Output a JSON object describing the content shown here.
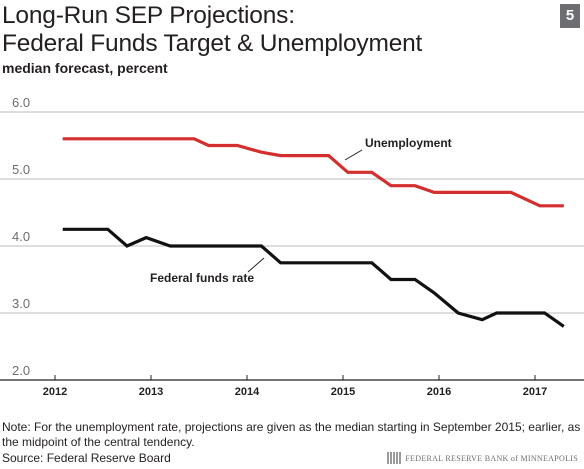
{
  "slide_number": "5",
  "chart_data": {
    "type": "line",
    "title": "Long-Run SEP Projections: Federal Funds Target & Unemployment",
    "title_lines": [
      "Long-Run SEP Projections:",
      "Federal Funds Target & Unemployment"
    ],
    "subtitle": "median forecast, percent",
    "xlabel": "",
    "ylabel": "",
    "xlim": [
      2012,
      2017.4
    ],
    "ylim": [
      2.0,
      6.0
    ],
    "x_ticks": [
      2012,
      2013,
      2014,
      2015,
      2016,
      2017
    ],
    "x_tick_labels": [
      "2012",
      "2013",
      "2014",
      "2015",
      "2016",
      "2017"
    ],
    "y_ticks": [
      2.0,
      3.0,
      4.0,
      5.0,
      6.0
    ],
    "y_tick_labels": [
      "2.0",
      "3.0",
      "4.0",
      "5.0",
      "6.0"
    ],
    "grid": true,
    "series": [
      {
        "name": "Unemployment",
        "color": "#d32f2f",
        "x": [
          2012.08,
          2012.5,
          2013.0,
          2013.25,
          2013.45,
          2013.6,
          2013.9,
          2014.15,
          2014.35,
          2014.6,
          2014.85,
          2015.05,
          2015.3,
          2015.5,
          2015.75,
          2015.95,
          2016.2,
          2016.5,
          2016.75,
          2017.05,
          2017.3
        ],
        "values": [
          5.6,
          5.6,
          5.6,
          5.6,
          5.6,
          5.5,
          5.5,
          5.4,
          5.35,
          5.35,
          5.35,
          5.1,
          5.1,
          4.9,
          4.9,
          4.8,
          4.8,
          4.8,
          4.8,
          4.6,
          4.6
        ]
      },
      {
        "name": "Federal funds rate",
        "color": "#111111",
        "x": [
          2012.08,
          2012.25,
          2012.55,
          2012.75,
          2012.95,
          2013.2,
          2013.5,
          2013.75,
          2014.0,
          2014.15,
          2014.35,
          2014.6,
          2014.85,
          2015.05,
          2015.3,
          2015.5,
          2015.75,
          2015.95,
          2016.2,
          2016.45,
          2016.6,
          2016.95,
          2017.1,
          2017.3
        ],
        "values": [
          4.25,
          4.25,
          4.25,
          4.0,
          4.125,
          4.0,
          4.0,
          4.0,
          4.0,
          4.0,
          3.75,
          3.75,
          3.75,
          3.75,
          3.75,
          3.5,
          3.5,
          3.3,
          3.0,
          2.9,
          3.0,
          3.0,
          3.0,
          2.8
        ]
      }
    ],
    "annotations": [
      {
        "text": "Unemployment",
        "series": "Unemployment"
      },
      {
        "text": "Federal funds rate",
        "series": "Federal funds rate"
      }
    ]
  },
  "note": "Note: For the unemployment rate, projections are given as the median starting in September 2015; earlier, as the midpoint of the central tendency.",
  "source": "Source: Federal Reserve Board",
  "logo_text": "FEDERAL RESERVE BANK of MINNEAPOLIS"
}
